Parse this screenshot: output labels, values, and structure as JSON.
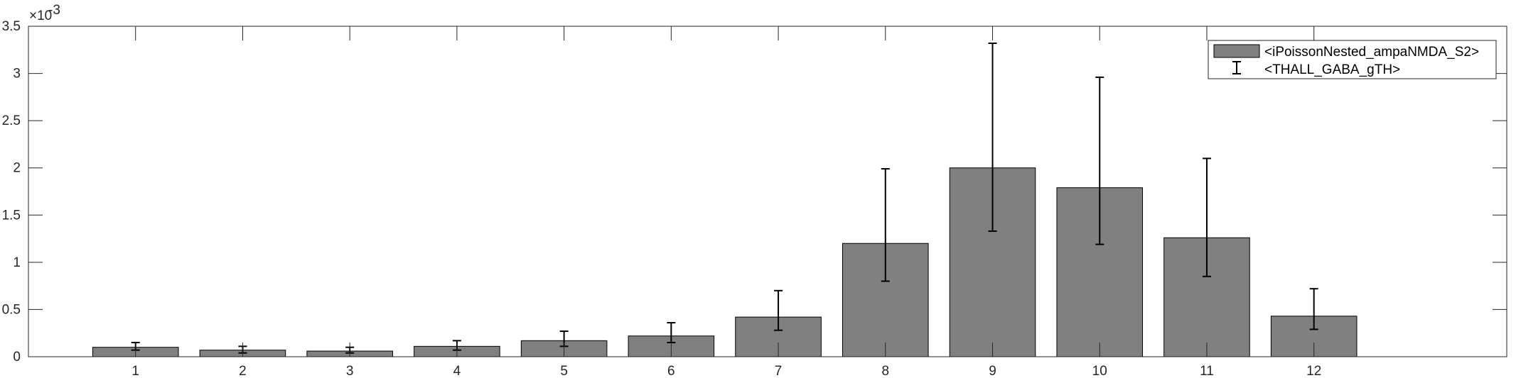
{
  "chart_data": {
    "type": "bar",
    "categories": [
      "1",
      "2",
      "3",
      "4",
      "5",
      "6",
      "7",
      "8",
      "9",
      "10",
      "11",
      "12"
    ],
    "series": [
      {
        "name": "<iPoissonNested_ampaNMDA_S2>",
        "values": [
          0.0001,
          7e-05,
          6e-05,
          0.00011,
          0.00017,
          0.00022,
          0.00042,
          0.0012,
          0.002,
          0.00179,
          0.00126,
          0.00043
        ]
      }
    ],
    "error_bars": {
      "name": "<THALL_GABA_gTH>",
      "lower": [
        7e-05,
        4e-05,
        4e-05,
        7e-05,
        0.00011,
        0.00015,
        0.00028,
        0.0008,
        0.00133,
        0.00119,
        0.00085,
        0.00029
      ],
      "upper": [
        0.00015,
        0.00011,
        0.0001,
        0.00017,
        0.00027,
        0.00036,
        0.0007,
        0.00199,
        0.00332,
        0.00296,
        0.0021,
        0.00072
      ]
    },
    "title": "",
    "xlabel": "",
    "ylabel": "",
    "ylim": [
      0,
      0.0035
    ],
    "xlim": [
      0,
      13.8
    ],
    "y_ticks": [
      0,
      0.0005,
      0.001,
      0.0015,
      0.002,
      0.0025,
      0.003,
      0.0035
    ],
    "y_tick_labels": [
      "0",
      "0.5",
      "1",
      "1.5",
      "2",
      "2.5",
      "3",
      "3.5"
    ],
    "y_exponent_label": "×10",
    "y_exponent_power": "-3",
    "grid": false,
    "legend_position": "top-right",
    "colors": {
      "bar_fill": "#808080",
      "bar_edge": "#000000",
      "axis": "#262626",
      "error_bar": "#000000"
    }
  }
}
